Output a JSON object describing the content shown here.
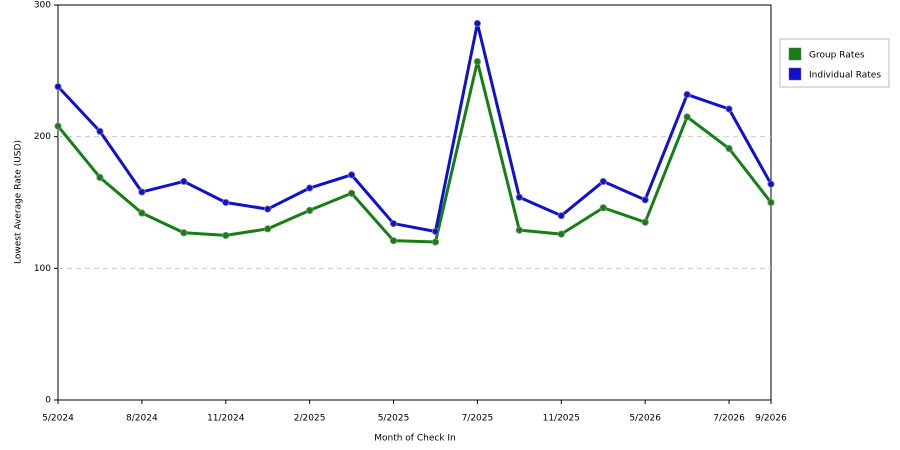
{
  "chart_data": {
    "type": "line",
    "x_label": "Month of Check In",
    "y_label": "Lowest Average Rate (USD)",
    "categories": [
      "5/2024",
      null,
      "8/2024",
      null,
      "11/2024",
      null,
      "2/2025",
      null,
      "5/2025",
      null,
      "7/2025",
      null,
      "11/2025",
      null,
      "5/2026",
      null,
      "7/2026",
      "9/2026"
    ],
    "series": [
      {
        "name": "Group Rates",
        "color": "#157f15",
        "values": [
          208,
          169,
          142,
          127,
          125,
          130,
          144,
          157,
          121,
          120,
          257,
          129,
          126,
          146,
          135,
          215,
          191,
          150
        ]
      },
      {
        "name": "Individual Rates",
        "color": "#1010d0",
        "values": [
          238,
          204,
          158,
          166,
          150,
          145,
          161,
          171,
          134,
          128,
          286,
          154,
          140,
          166,
          152,
          232,
          221,
          164
        ]
      }
    ],
    "ylim": [
      0,
      300
    ],
    "yticks": [
      0,
      100,
      200,
      300
    ],
    "grid": true,
    "legend": "right"
  }
}
